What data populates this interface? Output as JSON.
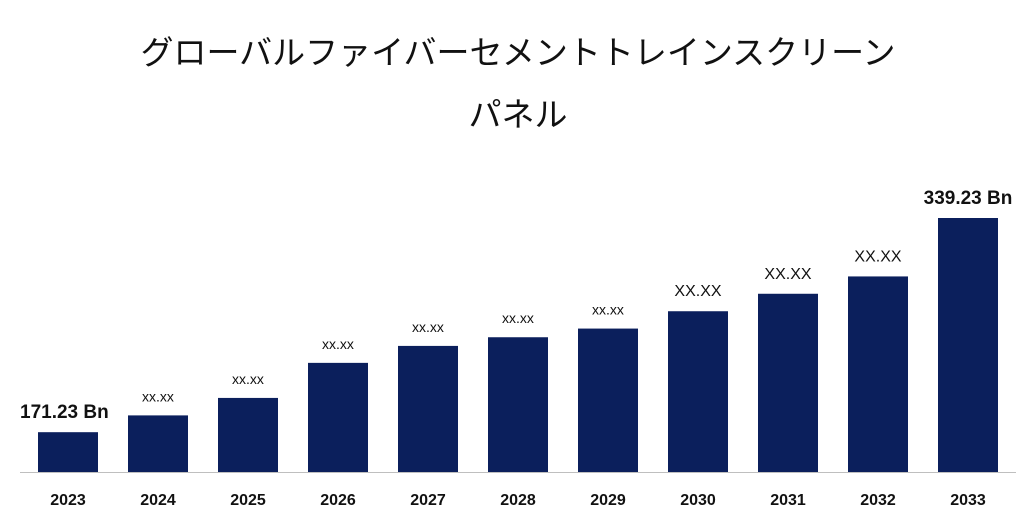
{
  "header": {
    "title_line1": "グローバルファイバーセメントトレインスクリーン",
    "title_line2": "パネル"
  },
  "colors": {
    "bar": "#0b1f5c",
    "baseline": "#bfbfbf"
  },
  "chart_data": {
    "type": "bar",
    "title": "グローバルファイバーセメントトレインスクリーンパネル",
    "xlabel": "",
    "ylabel": "",
    "grid": false,
    "legend": "none",
    "categories": [
      "2023",
      "2024",
      "2025",
      "2026",
      "2027",
      "2028",
      "2029",
      "2030",
      "2031",
      "2032",
      "2033"
    ],
    "values": [
      171.23,
      184.4,
      198.1,
      225.6,
      238.9,
      245.7,
      252.5,
      266.1,
      279.8,
      293.4,
      339.23
    ],
    "data_labels": [
      "171.23 Bn",
      "xx.xx",
      "xx.xx",
      "xx.xx",
      "xx.xx",
      "xx.xx",
      "xx.xx",
      "XX.XX",
      "XX.XX",
      "XX.XX",
      "339.23 Bn"
    ],
    "ylim": [
      140,
      350
    ]
  }
}
